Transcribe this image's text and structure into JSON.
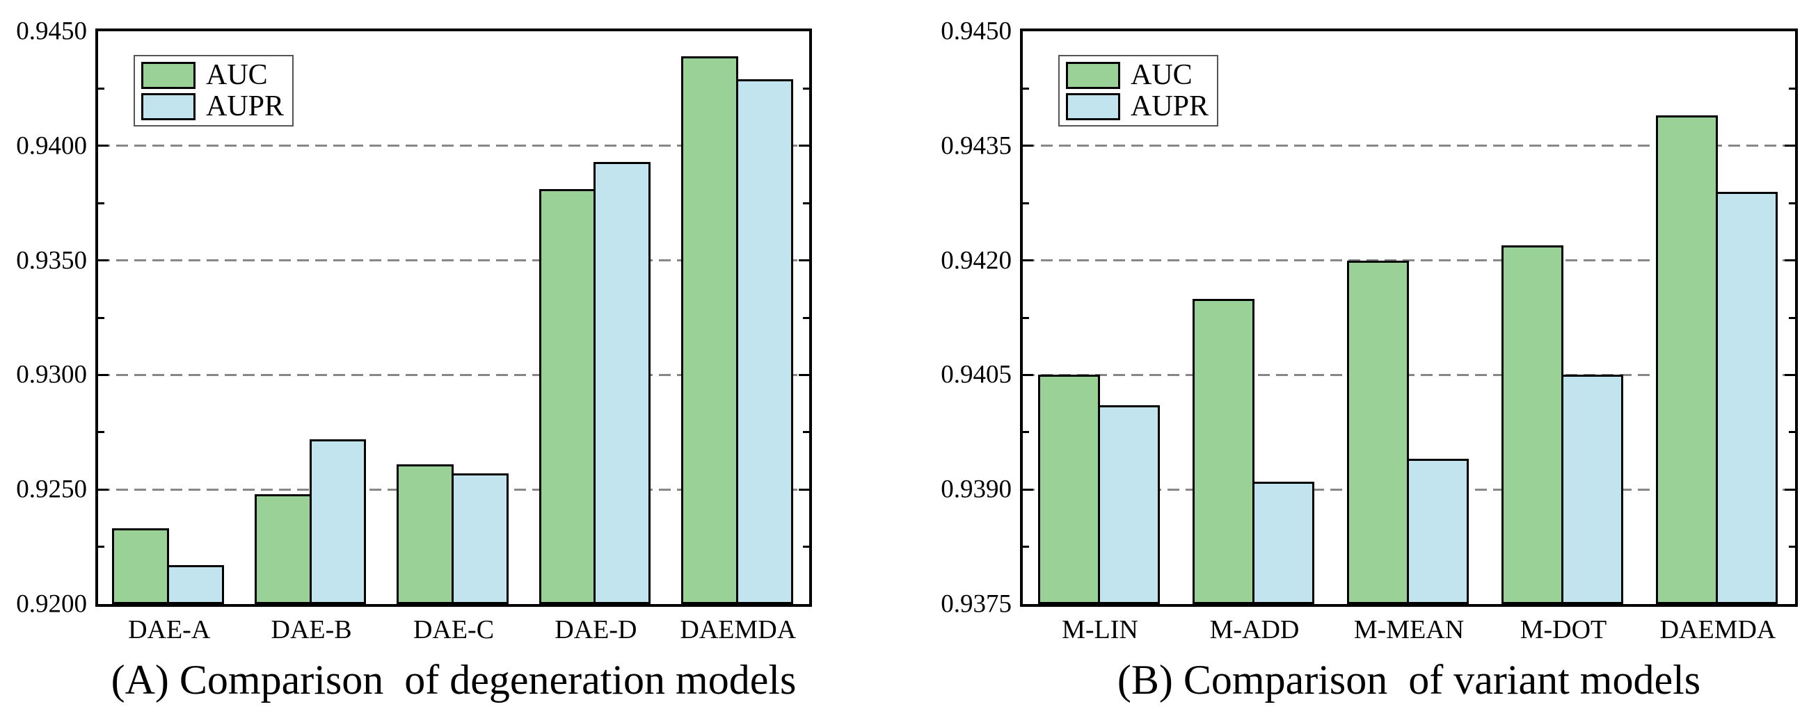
{
  "legend": {
    "auc_label": "AUC",
    "aupr_label": "AUPR"
  },
  "colors": {
    "auc": "#9ad197",
    "aupr": "#c2e4ef",
    "bar_edge": "#000000",
    "grid": "#878787",
    "axis": "#000000",
    "background": "#ffffff"
  },
  "chart_data": [
    {
      "id": "A",
      "type": "bar",
      "title": "(A) Comparison  of degeneration models",
      "categories": [
        "DAE-A",
        "DAE-B",
        "DAE-C",
        "DAE-D",
        "DAEMDA"
      ],
      "series": [
        {
          "name": "AUC",
          "values": [
            0.9233,
            0.9248,
            0.9261,
            0.9381,
            0.9439
          ]
        },
        {
          "name": "AUPR",
          "values": [
            0.9217,
            0.9272,
            0.9257,
            0.9393,
            0.9429
          ]
        }
      ],
      "ylim": [
        0.92,
        0.945
      ],
      "ytick_step": 0.005,
      "minor_step": 0.0025,
      "ytick_labels": [
        "0.9200",
        "0.9250",
        "0.9300",
        "0.9350",
        "0.9400",
        "0.9450"
      ],
      "xlabel": "",
      "ylabel": "",
      "grid": "dashed horizontal at major ticks",
      "legend_position": "upper-left"
    },
    {
      "id": "B",
      "type": "bar",
      "title": "(B) Comparison  of variant models",
      "categories": [
        "M-LIN",
        "M-ADD",
        "M-MEAN",
        "M-DOT",
        "DAEMDA"
      ],
      "series": [
        {
          "name": "AUC",
          "values": [
            0.9405,
            0.9415,
            0.942,
            0.9422,
            0.9439
          ]
        },
        {
          "name": "AUPR",
          "values": [
            0.9401,
            0.9391,
            0.9394,
            0.9405,
            0.9429
          ]
        }
      ],
      "ylim": [
        0.9375,
        0.945
      ],
      "ytick_step": 0.0015,
      "minor_step": 0.00075,
      "ytick_labels": [
        "0.9375",
        "0.9390",
        "0.9405",
        "0.9420",
        "0.9435",
        "0.9450"
      ],
      "xlabel": "",
      "ylabel": "",
      "grid": "dashed horizontal at major ticks",
      "legend_position": "upper-left"
    }
  ]
}
